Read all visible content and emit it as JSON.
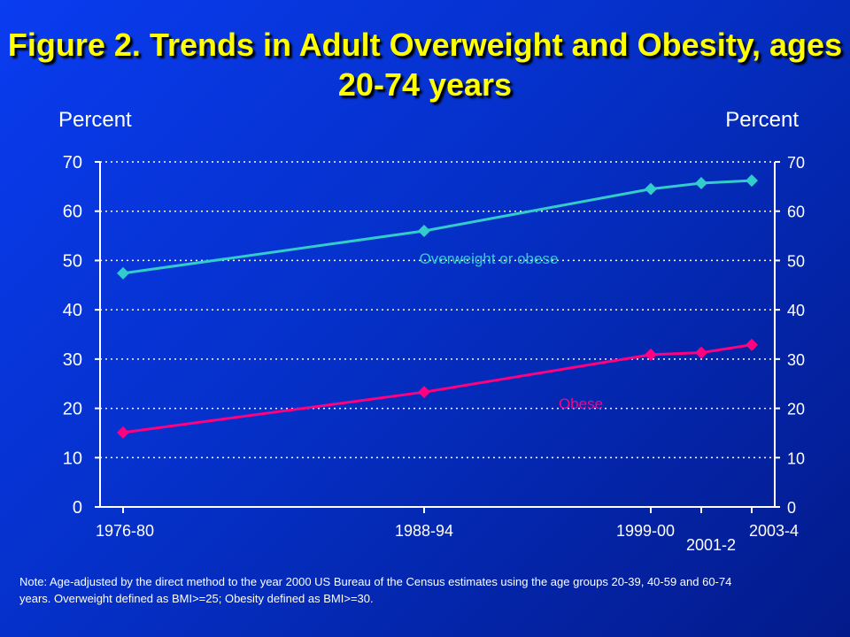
{
  "chart_data": {
    "type": "line",
    "title": "Figure 2. Trends in Adult Overweight and Obesity, ages 20-74 years",
    "ylabel_left": "Percent",
    "ylabel_right": "Percent",
    "ylim": [
      0,
      70
    ],
    "yticks": [
      0,
      10,
      20,
      30,
      40,
      50,
      60,
      70
    ],
    "grid": true,
    "categories": [
      "1976-80",
      "1988-94",
      "1999-00",
      "2001-2",
      "2003-4"
    ],
    "series": [
      {
        "name": "Overweight or obese",
        "color": "#33cccc",
        "values": [
          47.4,
          56.0,
          64.5,
          65.7,
          66.2
        ]
      },
      {
        "name": "Obese",
        "color": "#ff0080",
        "values": [
          15.1,
          23.3,
          30.9,
          31.3,
          32.9
        ]
      }
    ]
  },
  "note": "Note: Age-adjusted by the direct method to the year 2000 US Bureau of the Census estimates using the age groups 20-39, 40-59 and 60-74 years.  Overweight defined as BMI>=25; Obesity defined as BMI>=30."
}
